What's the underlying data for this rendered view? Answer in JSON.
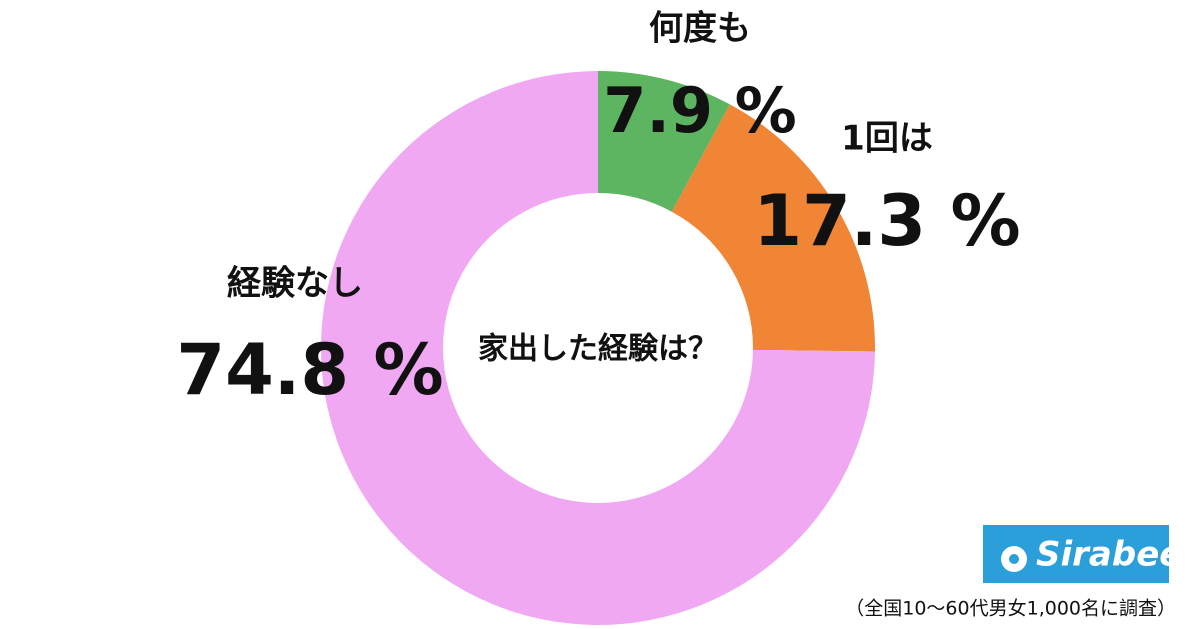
{
  "chart_data": {
    "type": "donut",
    "center_label": "家出した経験は？",
    "categories": [
      "何度も",
      "1回は",
      "経験なし"
    ],
    "values": [
      7.9,
      17.3,
      74.8
    ],
    "value_labels": [
      "7.9 %",
      "17.3 %",
      "74.8 %"
    ],
    "colors": [
      "#5db562",
      "#ef8535",
      "#f0a8f3"
    ],
    "note": "（全国10〜60代男女1,000名に調査）",
    "logo": "Sirabee"
  }
}
